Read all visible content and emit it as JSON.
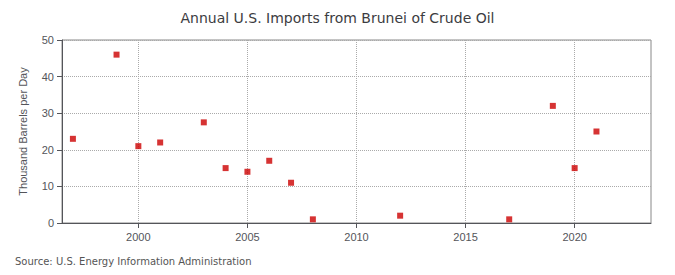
{
  "chart_data": {
    "type": "scatter",
    "title": "Annual U.S. Imports from Brunei of Crude Oil",
    "ylabel": "Thousand Barrels per Day",
    "annotation": "Source: U.S. Energy Information Administration",
    "x": [
      1997,
      1999,
      2000,
      2001,
      2003,
      2004,
      2005,
      2006,
      2007,
      2008,
      2012,
      2017,
      2019,
      2020,
      2021
    ],
    "values": [
      23,
      46,
      21,
      22,
      27.5,
      15,
      14,
      17,
      11,
      1,
      2,
      1,
      32,
      15,
      25
    ],
    "color": "#cc0000",
    "marker": "square",
    "xlim": [
      1996.5,
      2023.5
    ],
    "xticks": [
      2000,
      2005,
      2010,
      2015,
      2020
    ],
    "ylim": [
      0,
      50
    ],
    "yticks": [
      0,
      10,
      20,
      30,
      40,
      50
    ],
    "grid": true
  }
}
